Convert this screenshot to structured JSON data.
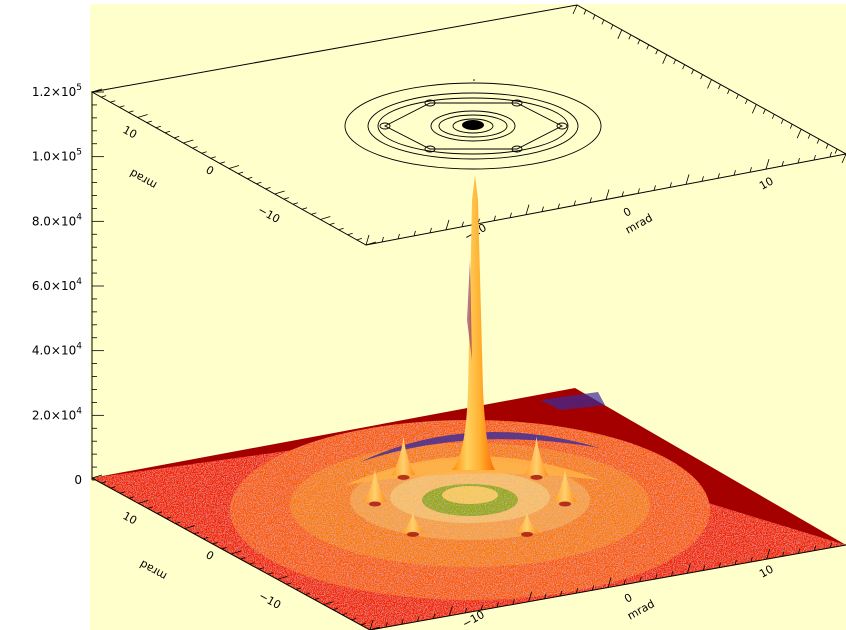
{
  "chart_data": {
    "type": "surface3d",
    "z_axis": {
      "range": [
        0,
        120000
      ],
      "ticks": [
        {
          "value": 0,
          "mantissa": "0",
          "exp": ""
        },
        {
          "value": 20000,
          "mantissa": "2.0×10",
          "exp": "4"
        },
        {
          "value": 40000,
          "mantissa": "4.0×10",
          "exp": "4"
        },
        {
          "value": 60000,
          "mantissa": "6.0×10",
          "exp": "4"
        },
        {
          "value": 80000,
          "mantissa": "8.0×10",
          "exp": "4"
        },
        {
          "value": 100000,
          "mantissa": "1.0×10",
          "exp": "5"
        },
        {
          "value": 120000,
          "mantissa": "1.2×10",
          "exp": "5"
        }
      ]
    },
    "x_axis": {
      "label": "mrad",
      "ticks": [
        -10,
        0,
        10
      ],
      "tick_labels": [
        "−10",
        "0",
        "10"
      ]
    },
    "y_axis": {
      "label": "mrad",
      "ticks": [
        -10,
        0,
        10
      ],
      "tick_labels": [
        "−10",
        "0",
        "10"
      ]
    },
    "surface": {
      "central_peak": {
        "x": 0,
        "y": 0,
        "z": 115000
      },
      "secondary_peaks": [
        {
          "x": -7,
          "y": 5,
          "z": 12000
        },
        {
          "x": 7,
          "y": 5,
          "z": 12000
        },
        {
          "x": -10,
          "y": 0,
          "z": 10000
        },
        {
          "x": 10,
          "y": 0,
          "z": 10000
        },
        {
          "x": -6,
          "y": -6,
          "z": 6000
        },
        {
          "x": 6,
          "y": -6,
          "z": 6000
        }
      ],
      "colors": {
        "floor": "#a40000",
        "low": "#ff2a00",
        "mid": "#ff7a00",
        "high": "#ffb347",
        "top": "#ffd060",
        "green": "#9aa800",
        "blue": "#3a2a9a",
        "background": "#ffffcc"
      }
    },
    "contour": {
      "ring_levels": 6,
      "satellite_count": 6
    }
  }
}
